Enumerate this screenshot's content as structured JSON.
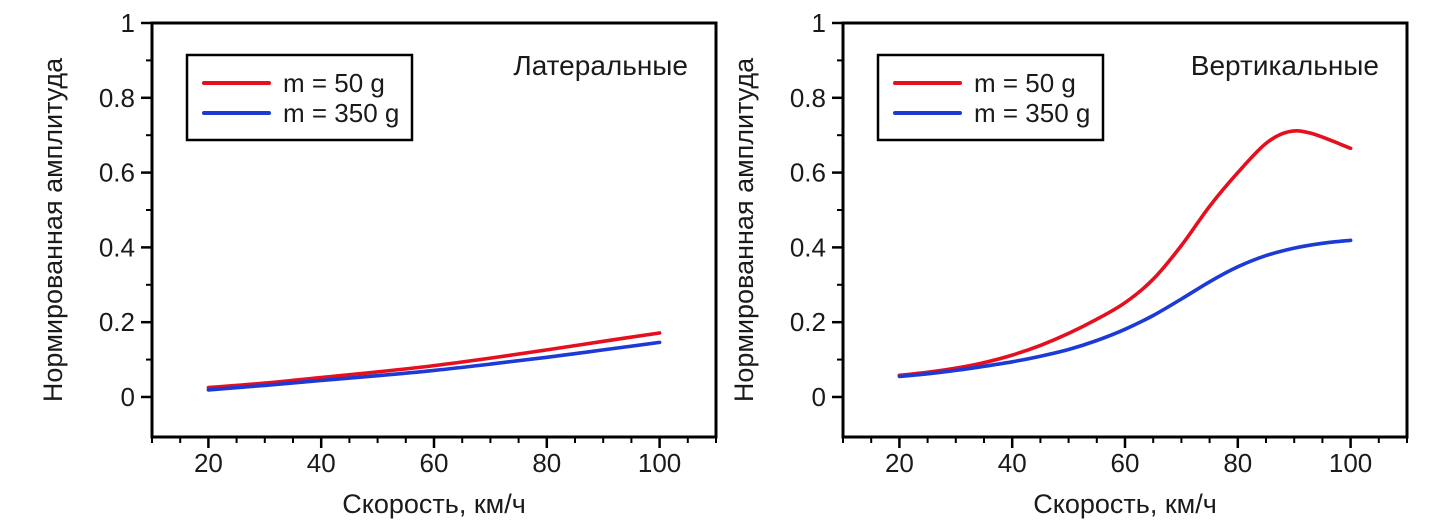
{
  "page": {
    "background": "#ffffff"
  },
  "colors": {
    "series_red": "#e60f1e",
    "series_blue": "#1c3ad6",
    "axis": "#000000",
    "text": "#1a1a1a",
    "legend_border": "#000000",
    "legend_background": "#ffffff"
  },
  "chart_data": [
    {
      "type": "line",
      "title": "Латеральные",
      "xlabel": "Скорость, км/ч",
      "ylabel": "Нормированная амплитуда",
      "xlim": [
        10,
        110
      ],
      "ylim": [
        -0.107,
        1
      ],
      "xticks": [
        20,
        40,
        60,
        80,
        100
      ],
      "xtick_labels": [
        "20",
        "40",
        "60",
        "80",
        "100"
      ],
      "xminor_step": 5,
      "yticks": [
        0,
        0.2,
        0.4,
        0.6,
        0.8,
        1
      ],
      "ytick_labels": [
        "0",
        "0.2",
        "0.4",
        "0.6",
        "0.8",
        "1"
      ],
      "yminor": [
        0.1,
        0.3,
        0.5,
        0.7,
        0.9
      ],
      "grid": false,
      "legend": {
        "position": "top-left",
        "entries": [
          {
            "label": "m = 50 g",
            "color_key": "series_red"
          },
          {
            "label": "m = 350 g",
            "color_key": "series_blue"
          }
        ]
      },
      "series": [
        {
          "name": "m = 50 g",
          "color_key": "series_red",
          "points": [
            [
              20,
              0.025
            ],
            [
              30,
              0.037
            ],
            [
              40,
              0.052
            ],
            [
              50,
              0.067
            ],
            [
              60,
              0.084
            ],
            [
              70,
              0.104
            ],
            [
              80,
              0.126
            ],
            [
              90,
              0.149
            ],
            [
              100,
              0.171
            ]
          ]
        },
        {
          "name": "m = 350 g",
          "color_key": "series_blue",
          "points": [
            [
              20,
              0.019
            ],
            [
              30,
              0.031
            ],
            [
              40,
              0.044
            ],
            [
              50,
              0.057
            ],
            [
              60,
              0.071
            ],
            [
              70,
              0.088
            ],
            [
              80,
              0.106
            ],
            [
              90,
              0.126
            ],
            [
              100,
              0.146
            ]
          ]
        }
      ]
    },
    {
      "type": "line",
      "title": "Вертикальные",
      "xlabel": "Скорость, км/ч",
      "ylabel": "Нормированная амплитуда",
      "xlim": [
        10,
        110
      ],
      "ylim": [
        -0.107,
        1
      ],
      "xticks": [
        20,
        40,
        60,
        80,
        100
      ],
      "xtick_labels": [
        "20",
        "40",
        "60",
        "80",
        "100"
      ],
      "xminor_step": 5,
      "yticks": [
        0,
        0.2,
        0.4,
        0.6,
        0.8,
        1
      ],
      "ytick_labels": [
        "0",
        "0.2",
        "0.4",
        "0.6",
        "0.8",
        "1"
      ],
      "yminor": [
        0.1,
        0.3,
        0.5,
        0.7,
        0.9
      ],
      "grid": false,
      "legend": {
        "position": "top-left",
        "entries": [
          {
            "label": "m = 50 g",
            "color_key": "series_red"
          },
          {
            "label": "m = 350 g",
            "color_key": "series_blue"
          }
        ]
      },
      "series": [
        {
          "name": "m = 50 g",
          "color_key": "series_red",
          "points": [
            [
              20,
              0.058
            ],
            [
              25,
              0.066
            ],
            [
              30,
              0.077
            ],
            [
              35,
              0.092
            ],
            [
              40,
              0.112
            ],
            [
              45,
              0.138
            ],
            [
              50,
              0.17
            ],
            [
              55,
              0.208
            ],
            [
              60,
              0.252
            ],
            [
              65,
              0.315
            ],
            [
              70,
              0.405
            ],
            [
              75,
              0.51
            ],
            [
              80,
              0.6
            ],
            [
              85,
              0.678
            ],
            [
              89,
              0.709
            ],
            [
              93,
              0.705
            ],
            [
              100,
              0.665
            ]
          ]
        },
        {
          "name": "m = 350 g",
          "color_key": "series_blue",
          "points": [
            [
              20,
              0.055
            ],
            [
              25,
              0.062
            ],
            [
              30,
              0.071
            ],
            [
              35,
              0.082
            ],
            [
              40,
              0.094
            ],
            [
              45,
              0.109
            ],
            [
              50,
              0.127
            ],
            [
              55,
              0.151
            ],
            [
              60,
              0.181
            ],
            [
              65,
              0.218
            ],
            [
              70,
              0.262
            ],
            [
              75,
              0.308
            ],
            [
              80,
              0.348
            ],
            [
              85,
              0.378
            ],
            [
              90,
              0.398
            ],
            [
              95,
              0.411
            ],
            [
              100,
              0.419
            ]
          ]
        }
      ]
    }
  ]
}
